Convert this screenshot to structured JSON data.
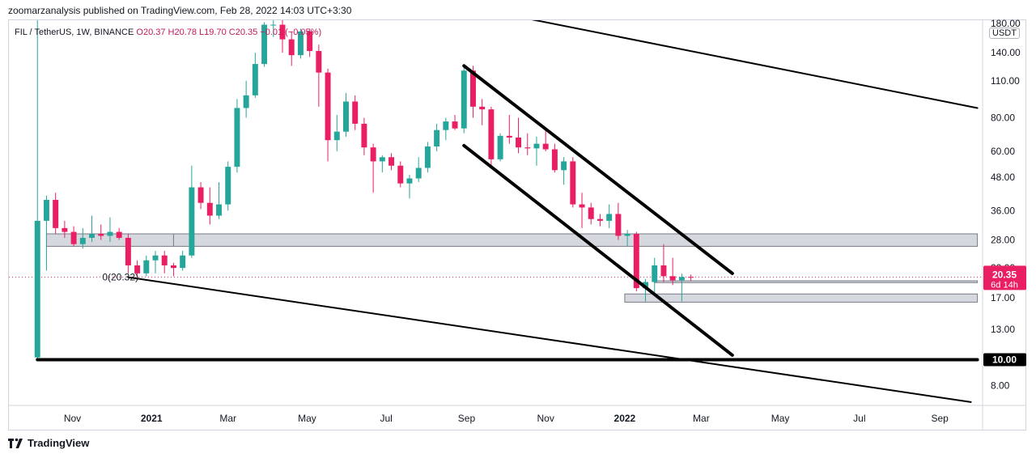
{
  "publisher": "zoomarzanalysis published on TradingView.com, Feb 28, 2022 14:03 UTC+3:30",
  "legend": {
    "symbol": "FIL / TetherUS, 1W, BINANCE",
    "ohlc": "O20.37  H20.78  L19.70  C20.35  −0.01 (−0.05%)"
  },
  "price_unit": "USDT",
  "current_price_label": "20.35",
  "countdown_label": "6d 14h",
  "key_level_label": "10.00",
  "fib_label": "0(20.32)",
  "footer_brand": "TradingView",
  "colors": {
    "up": "#26a69a",
    "down": "#e91e63",
    "zone_fill": "#d1d4dc",
    "trendline": "#000000",
    "price_tag": "#e91e63"
  },
  "chart_data": {
    "type": "candlestick",
    "scale": "log",
    "y_ticks": [
      "8.00",
      "10.00",
      "13.00",
      "17.00",
      "22.00",
      "28.00",
      "36.00",
      "48.00",
      "60.00",
      "80.00",
      "110.00",
      "140.00",
      "180.00"
    ],
    "x_ticks": [
      "Nov",
      "2021",
      "Mar",
      "May",
      "Jul",
      "Sep",
      "Nov",
      "2022",
      "Mar",
      "May",
      "Jul",
      "Sep"
    ],
    "candles": [
      {
        "d": "2020-10-05",
        "o": 10.2,
        "h": 200,
        "l": 10.0,
        "c": 33.0
      },
      {
        "d": "2020-10-12",
        "o": 33.0,
        "h": 41,
        "l": 21.5,
        "c": 39.5
      },
      {
        "d": "2020-10-19",
        "o": 39.5,
        "h": 42,
        "l": 29.5,
        "c": 31.0
      },
      {
        "d": "2020-10-26",
        "o": 31.0,
        "h": 33,
        "l": 28.5,
        "c": 30.0
      },
      {
        "d": "2020-11-02",
        "o": 30.0,
        "h": 31.5,
        "l": 26.5,
        "c": 27.0
      },
      {
        "d": "2020-11-09",
        "o": 27.0,
        "h": 31.0,
        "l": 26.0,
        "c": 28.5
      },
      {
        "d": "2020-11-16",
        "o": 28.5,
        "h": 34.5,
        "l": 27.5,
        "c": 29.5
      },
      {
        "d": "2020-11-23",
        "o": 29.5,
        "h": 32.0,
        "l": 28.0,
        "c": 29.0
      },
      {
        "d": "2020-11-30",
        "o": 29.0,
        "h": 34.0,
        "l": 27.5,
        "c": 30.0
      },
      {
        "d": "2020-12-07",
        "o": 30.0,
        "h": 31.0,
        "l": 28.0,
        "c": 28.5
      },
      {
        "d": "2020-12-14",
        "o": 28.5,
        "h": 29.5,
        "l": 21.0,
        "c": 22.5
      },
      {
        "d": "2020-12-21",
        "o": 22.5,
        "h": 23.5,
        "l": 20.0,
        "c": 21.0
      },
      {
        "d": "2020-12-28",
        "o": 21.0,
        "h": 24.5,
        "l": 20.5,
        "c": 23.5
      },
      {
        "d": "2021-01-04",
        "o": 23.5,
        "h": 25.5,
        "l": 21.0,
        "c": 24.5
      },
      {
        "d": "2021-01-11",
        "o": 24.5,
        "h": 25.5,
        "l": 21.0,
        "c": 22.5
      },
      {
        "d": "2021-01-18",
        "o": 22.5,
        "h": 23.0,
        "l": 20.5,
        "c": 22.0
      },
      {
        "d": "2021-01-25",
        "o": 22.0,
        "h": 25.5,
        "l": 21.5,
        "c": 24.5
      },
      {
        "d": "2021-02-01",
        "o": 24.5,
        "h": 53.0,
        "l": 24.0,
        "c": 44.0
      },
      {
        "d": "2021-02-08",
        "o": 44.0,
        "h": 46.0,
        "l": 36.5,
        "c": 38.5
      },
      {
        "d": "2021-02-15",
        "o": 38.5,
        "h": 44.0,
        "l": 32.0,
        "c": 34.5
      },
      {
        "d": "2021-02-22",
        "o": 34.5,
        "h": 46.0,
        "l": 33.5,
        "c": 38.0
      },
      {
        "d": "2021-03-01",
        "o": 38.0,
        "h": 55.0,
        "l": 36.0,
        "c": 52.5
      },
      {
        "d": "2021-03-08",
        "o": 52.5,
        "h": 94.0,
        "l": 50.0,
        "c": 87.0
      },
      {
        "d": "2021-03-15",
        "o": 87.0,
        "h": 110.0,
        "l": 80.0,
        "c": 97.0
      },
      {
        "d": "2021-03-22",
        "o": 97.0,
        "h": 140.0,
        "l": 95.0,
        "c": 127.0
      },
      {
        "d": "2021-03-29",
        "o": 127.0,
        "h": 182.0,
        "l": 124.0,
        "c": 178.0
      },
      {
        "d": "2021-04-05",
        "o": 178.0,
        "h": 237.0,
        "l": 160.0,
        "c": 178.0
      },
      {
        "d": "2021-04-12",
        "o": 178.0,
        "h": 190.0,
        "l": 140.0,
        "c": 157.0
      },
      {
        "d": "2021-04-19",
        "o": 157.0,
        "h": 168.0,
        "l": 125.0,
        "c": 137.0
      },
      {
        "d": "2021-04-26",
        "o": 137.0,
        "h": 172.0,
        "l": 133.0,
        "c": 168.0
      },
      {
        "d": "2021-05-03",
        "o": 168.0,
        "h": 172.0,
        "l": 135.0,
        "c": 142.0
      },
      {
        "d": "2021-05-10",
        "o": 142.0,
        "h": 150.0,
        "l": 88.0,
        "c": 118.0
      },
      {
        "d": "2021-05-17",
        "o": 118.0,
        "h": 122.0,
        "l": 55.0,
        "c": 66.0
      },
      {
        "d": "2021-05-24",
        "o": 66.0,
        "h": 82.0,
        "l": 60.0,
        "c": 71.0
      },
      {
        "d": "2021-05-31",
        "o": 71.0,
        "h": 99.0,
        "l": 68.0,
        "c": 92.0
      },
      {
        "d": "2021-06-07",
        "o": 92.0,
        "h": 97.0,
        "l": 72.0,
        "c": 76.0
      },
      {
        "d": "2021-06-14",
        "o": 76.0,
        "h": 80.0,
        "l": 58.0,
        "c": 62.0
      },
      {
        "d": "2021-06-21",
        "o": 62.0,
        "h": 64.0,
        "l": 42.0,
        "c": 55.0
      },
      {
        "d": "2021-06-28",
        "o": 55.0,
        "h": 58.0,
        "l": 50.0,
        "c": 57.0
      },
      {
        "d": "2021-07-05",
        "o": 57.0,
        "h": 59.0,
        "l": 51.0,
        "c": 53.0
      },
      {
        "d": "2021-07-12",
        "o": 53.0,
        "h": 55.0,
        "l": 44.0,
        "c": 45.5
      },
      {
        "d": "2021-07-19",
        "o": 45.5,
        "h": 49.0,
        "l": 40.0,
        "c": 47.5
      },
      {
        "d": "2021-07-26",
        "o": 47.5,
        "h": 57.0,
        "l": 46.0,
        "c": 52.0
      },
      {
        "d": "2021-08-02",
        "o": 52.0,
        "h": 65.0,
        "l": 50.0,
        "c": 62.5
      },
      {
        "d": "2021-08-09",
        "o": 62.5,
        "h": 76.0,
        "l": 60.0,
        "c": 72.0
      },
      {
        "d": "2021-08-16",
        "o": 72.0,
        "h": 80.0,
        "l": 66.0,
        "c": 77.5
      },
      {
        "d": "2021-08-23",
        "o": 77.5,
        "h": 82.0,
        "l": 72.0,
        "c": 73.0
      },
      {
        "d": "2021-08-30",
        "o": 73.0,
        "h": 127.0,
        "l": 70.0,
        "c": 120.0
      },
      {
        "d": "2021-09-06",
        "o": 120.0,
        "h": 125.0,
        "l": 80.0,
        "c": 88.0
      },
      {
        "d": "2021-09-13",
        "o": 88.0,
        "h": 94.0,
        "l": 75.0,
        "c": 86.0
      },
      {
        "d": "2021-09-20",
        "o": 86.0,
        "h": 88.0,
        "l": 52.0,
        "c": 56.0
      },
      {
        "d": "2021-09-27",
        "o": 56.0,
        "h": 70.0,
        "l": 55.0,
        "c": 68.5
      },
      {
        "d": "2021-10-04",
        "o": 68.5,
        "h": 82.0,
        "l": 64.0,
        "c": 67.5
      },
      {
        "d": "2021-10-11",
        "o": 67.5,
        "h": 80.0,
        "l": 59.0,
        "c": 62.0
      },
      {
        "d": "2021-10-18",
        "o": 62.0,
        "h": 70.0,
        "l": 58.0,
        "c": 61.5
      },
      {
        "d": "2021-10-25",
        "o": 61.5,
        "h": 68.0,
        "l": 53.0,
        "c": 64.0
      },
      {
        "d": "2021-11-01",
        "o": 64.0,
        "h": 72.0,
        "l": 60.0,
        "c": 61.0
      },
      {
        "d": "2021-11-08",
        "o": 61.0,
        "h": 64.0,
        "l": 50.0,
        "c": 51.0
      },
      {
        "d": "2021-11-15",
        "o": 51.0,
        "h": 57.0,
        "l": 45.0,
        "c": 55.0
      },
      {
        "d": "2021-11-22",
        "o": 55.0,
        "h": 57.0,
        "l": 37.0,
        "c": 38.0
      },
      {
        "d": "2021-11-29",
        "o": 38.0,
        "h": 42.0,
        "l": 31.0,
        "c": 37.0
      },
      {
        "d": "2021-12-06",
        "o": 37.0,
        "h": 38.5,
        "l": 32.0,
        "c": 33.5
      },
      {
        "d": "2021-12-13",
        "o": 33.5,
        "h": 35.0,
        "l": 31.5,
        "c": 33.0
      },
      {
        "d": "2021-12-20",
        "o": 33.0,
        "h": 38.0,
        "l": 31.0,
        "c": 35.0
      },
      {
        "d": "2021-12-27",
        "o": 35.0,
        "h": 38.5,
        "l": 28.0,
        "c": 29.0
      },
      {
        "d": "2022-01-03",
        "o": 29.0,
        "h": 30.5,
        "l": 26.5,
        "c": 29.5
      },
      {
        "d": "2022-01-10",
        "o": 29.5,
        "h": 30.0,
        "l": 18.0,
        "c": 18.5
      },
      {
        "d": "2022-01-17",
        "o": 18.5,
        "h": 20.0,
        "l": 16.5,
        "c": 19.5
      },
      {
        "d": "2022-01-24",
        "o": 19.5,
        "h": 24.0,
        "l": 17.5,
        "c": 22.5
      },
      {
        "d": "2022-01-31",
        "o": 22.5,
        "h": 27.0,
        "l": 19.5,
        "c": 20.5
      },
      {
        "d": "2022-02-07",
        "o": 20.5,
        "h": 24.0,
        "l": 19.0,
        "c": 19.8
      },
      {
        "d": "2022-02-14",
        "o": 19.8,
        "h": 21.0,
        "l": 16.5,
        "c": 20.37
      },
      {
        "d": "2022-02-21",
        "o": 20.37,
        "h": 20.78,
        "l": 19.7,
        "c": 20.35
      }
    ],
    "horizontal_zones": [
      {
        "from": "2020-10-12",
        "to": "2022-09-30",
        "low": 26.5,
        "high": 29.5
      },
      {
        "from": "2022-01-01",
        "to": "2022-09-30",
        "low": 16.4,
        "high": 17.6
      },
      {
        "from": "2022-01-24",
        "to": "2022-09-30",
        "low": 19.4,
        "high": 19.7
      }
    ],
    "trendlines": [
      {
        "kind": "channel-top-wide",
        "from": [
          "2021-04-20",
          280
        ],
        "to": [
          "2022-09-30",
          87
        ],
        "width": 2
      },
      {
        "kind": "channel-bottom-wide",
        "from": [
          "2020-12-14",
          20.32
        ],
        "to": [
          "2022-09-25",
          6.95
        ],
        "width": 2
      },
      {
        "kind": "channel-top-narrow",
        "from": [
          "2021-08-30",
          125
        ],
        "to": [
          "2022-03-25",
          21.0
        ],
        "width": 4
      },
      {
        "kind": "channel-bottom-narrow",
        "from": [
          "2021-08-30",
          63
        ],
        "to": [
          "2022-03-25",
          10.4
        ],
        "width": 4
      },
      {
        "kind": "support-10",
        "from": [
          "2020-10-05",
          10.0
        ],
        "to": [
          "2022-09-30",
          10.0
        ],
        "width": 4
      }
    ],
    "current_price": 20.35,
    "range": {
      "x_start": "2020-09-13",
      "x_end": "2022-10-04",
      "y_min": 6.8,
      "y_max": 185
    }
  }
}
